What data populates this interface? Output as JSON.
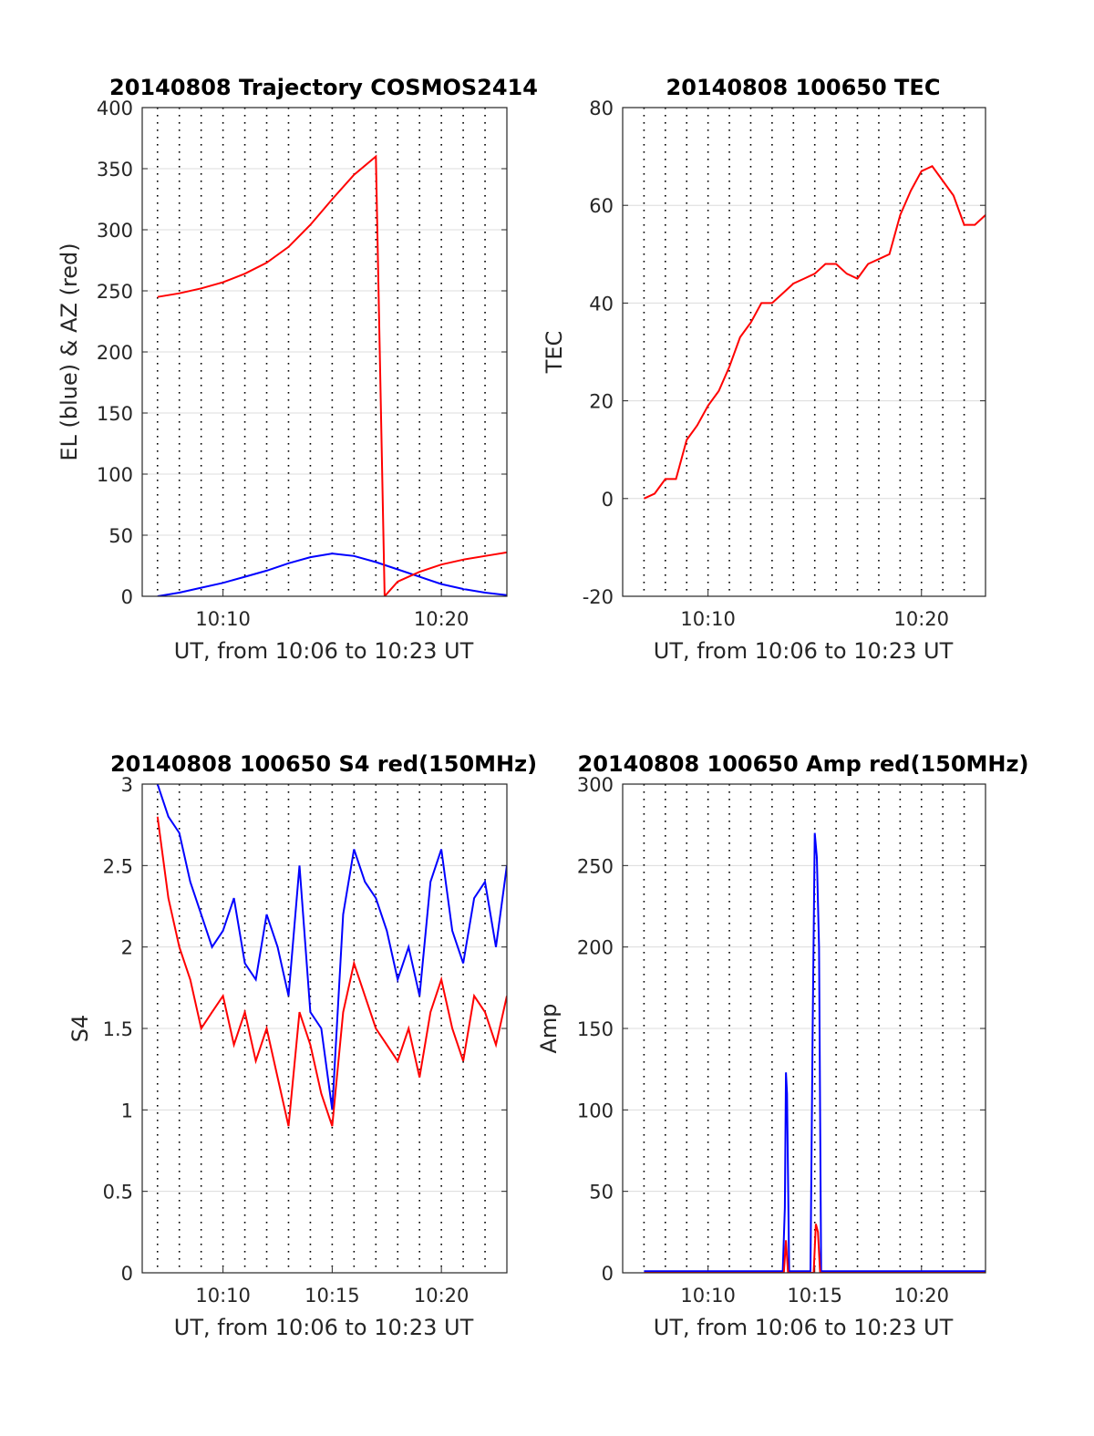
{
  "chart_data": [
    {
      "id": "traj",
      "type": "line",
      "title": "20140808 Trajectory COSMOS2414",
      "xlabel": "UT, from 10:06 to 10:23 UT",
      "ylabel": "EL (blue) & AZ (red)",
      "xlim_minutes_after_10_00": [
        6.3,
        23.0
      ],
      "ylim": [
        0,
        400
      ],
      "yticks": [
        0,
        50,
        100,
        150,
        200,
        250,
        300,
        350,
        400
      ],
      "xticks": [
        {
          "value": 10,
          "label": "10:10"
        },
        {
          "value": 20,
          "label": "10:20"
        }
      ],
      "grid": true,
      "series": [
        {
          "name": "EL (blue)",
          "color": "#0000ff",
          "x": [
            "10:07",
            "10:08",
            "10:09",
            "10:10",
            "10:11",
            "10:12",
            "10:13",
            "10:14",
            "10:15",
            "10:16",
            "10:17",
            "10:18",
            "10:19",
            "10:20",
            "10:21",
            "10:22",
            "10:23"
          ],
          "y": [
            0,
            3,
            7,
            11,
            16,
            21,
            27,
            32,
            35,
            33,
            28,
            22,
            16,
            10,
            6,
            3,
            1
          ]
        },
        {
          "name": "AZ (red)",
          "color": "#ff0000",
          "x": [
            "10:07",
            "10:08",
            "10:09",
            "10:10",
            "10:11",
            "10:12",
            "10:13",
            "10:14",
            "10:15",
            "10:16",
            "10:17",
            "10:17.4",
            "10:18",
            "10:19",
            "10:20",
            "10:21",
            "10:22",
            "10:23"
          ],
          "y": [
            245,
            248,
            252,
            257,
            264,
            273,
            286,
            304,
            325,
            345,
            360,
            0,
            12,
            20,
            26,
            30,
            33,
            36
          ]
        }
      ]
    },
    {
      "id": "tec",
      "type": "line",
      "title": "20140808 100650 TEC",
      "xlabel": "UT, from 10:06 to 10:23 UT",
      "ylabel": "TEC",
      "xlim_minutes_after_10_00": [
        6.0,
        23.0
      ],
      "ylim": [
        -20,
        80
      ],
      "yticks": [
        -20,
        0,
        20,
        40,
        60,
        80
      ],
      "xticks": [
        {
          "value": 10,
          "label": "10:10"
        },
        {
          "value": 20,
          "label": "10:20"
        }
      ],
      "grid": true,
      "series": [
        {
          "name": "TEC",
          "color": "#ff0000",
          "x": [
            "10:07",
            "10:07.5",
            "10:08",
            "10:08.5",
            "10:09",
            "10:09.5",
            "10:10",
            "10:10.5",
            "10:11",
            "10:11.5",
            "10:12",
            "10:12.5",
            "10:13",
            "10:13.5",
            "10:14",
            "10:14.5",
            "10:15",
            "10:15.5",
            "10:16",
            "10:16.5",
            "10:17",
            "10:17.5",
            "10:18",
            "10:18.5",
            "10:19",
            "10:19.5",
            "10:20",
            "10:20.5",
            "10:21",
            "10:21.5",
            "10:22",
            "10:22.5",
            "10:23"
          ],
          "y": [
            0,
            1,
            4,
            4,
            12,
            15,
            19,
            22,
            27,
            33,
            36,
            40,
            40,
            42,
            44,
            45,
            46,
            48,
            48,
            46,
            45,
            48,
            49,
            50,
            58,
            63,
            67,
            68,
            65,
            62,
            56,
            56,
            58
          ]
        }
      ]
    },
    {
      "id": "s4",
      "type": "line",
      "title": "20140808 100650 S4 red(150MHz)",
      "xlabel": "UT, from 10:06 to 10:23 UT",
      "ylabel": "S4",
      "xlim_minutes_after_10_00": [
        6.3,
        23.0
      ],
      "ylim": [
        0,
        3
      ],
      "yticks": [
        "0",
        "0.5",
        "1",
        "1.5",
        "2",
        "2.5",
        "3"
      ],
      "xticks": [
        {
          "value": 10,
          "label": "10:10"
        },
        {
          "value": 15,
          "label": "10:15"
        },
        {
          "value": 20,
          "label": "10:20"
        }
      ],
      "grid": true,
      "series": [
        {
          "name": "S4 (blue)",
          "color": "#0000ff",
          "x": [
            "10:07",
            "10:07.5",
            "10:08",
            "10:08.5",
            "10:09",
            "10:09.5",
            "10:10",
            "10:10.5",
            "10:11",
            "10:11.5",
            "10:12",
            "10:12.5",
            "10:13",
            "10:13.5",
            "10:14",
            "10:14.5",
            "10:15",
            "10:15.5",
            "10:16",
            "10:16.5",
            "10:17",
            "10:17.5",
            "10:18",
            "10:18.5",
            "10:19",
            "10:19.5",
            "10:20",
            "10:20.5",
            "10:21",
            "10:21.5",
            "10:22",
            "10:22.5",
            "10:23"
          ],
          "y": [
            3,
            2.8,
            2.7,
            2.4,
            2.2,
            2.0,
            2.1,
            2.3,
            1.9,
            1.8,
            2.2,
            2.0,
            1.7,
            2.5,
            1.6,
            1.5,
            1.0,
            2.2,
            2.6,
            2.4,
            2.3,
            2.1,
            1.8,
            2.0,
            1.7,
            2.4,
            2.6,
            2.1,
            1.9,
            2.3,
            2.4,
            2.0,
            2.5
          ]
        },
        {
          "name": "S4 (red)",
          "color": "#ff0000",
          "x": [
            "10:07",
            "10:07.5",
            "10:08",
            "10:08.5",
            "10:09",
            "10:09.5",
            "10:10",
            "10:10.5",
            "10:11",
            "10:11.5",
            "10:12",
            "10:12.5",
            "10:13",
            "10:13.5",
            "10:14",
            "10:14.5",
            "10:15",
            "10:15.5",
            "10:16",
            "10:16.5",
            "10:17",
            "10:17.5",
            "10:18",
            "10:18.5",
            "10:19",
            "10:19.5",
            "10:20",
            "10:20.5",
            "10:21",
            "10:21.5",
            "10:22",
            "10:22.5",
            "10:23"
          ],
          "y": [
            2.8,
            2.3,
            2.0,
            1.8,
            1.5,
            1.6,
            1.7,
            1.4,
            1.6,
            1.3,
            1.5,
            1.2,
            0.9,
            1.6,
            1.4,
            1.1,
            0.9,
            1.6,
            1.9,
            1.7,
            1.5,
            1.4,
            1.3,
            1.5,
            1.2,
            1.6,
            1.8,
            1.5,
            1.3,
            1.7,
            1.6,
            1.4,
            1.7
          ]
        }
      ]
    },
    {
      "id": "amp",
      "type": "line",
      "title": "20140808 100650 Amp red(150MHz)",
      "xlabel": "UT, from 10:06 to 10:23 UT",
      "ylabel": "Amp",
      "xlim_minutes_after_10_00": [
        6.0,
        23.0
      ],
      "ylim": [
        0,
        300
      ],
      "yticks": [
        0,
        50,
        100,
        150,
        200,
        250,
        300
      ],
      "xticks": [
        {
          "value": 10,
          "label": "10:10"
        },
        {
          "value": 15,
          "label": "10:15"
        },
        {
          "value": 20,
          "label": "10:20"
        }
      ],
      "grid": true,
      "series": [
        {
          "name": "Amp (blue)",
          "color": "#0000ff",
          "x": [
            "10:07",
            "10:13.5",
            "10:13.6",
            "10:13.65",
            "10:13.7",
            "10:13.8",
            "10:14.8",
            "10:14.9",
            "10:15.0",
            "10:15.1",
            "10:15.2",
            "10:15.3",
            "10:23"
          ],
          "y": [
            1,
            1,
            40,
            123,
            110,
            1,
            1,
            150,
            270,
            255,
            200,
            1,
            1
          ]
        },
        {
          "name": "Amp (red)",
          "color": "#ff0000",
          "x": [
            "10:07",
            "10:13.55",
            "10:13.65",
            "10:13.75",
            "10:14.95",
            "10:15.05",
            "10:15.15",
            "10:15.25",
            "10:23"
          ],
          "y": [
            0,
            0,
            20,
            0,
            0,
            30,
            25,
            0,
            0
          ]
        }
      ]
    }
  ]
}
